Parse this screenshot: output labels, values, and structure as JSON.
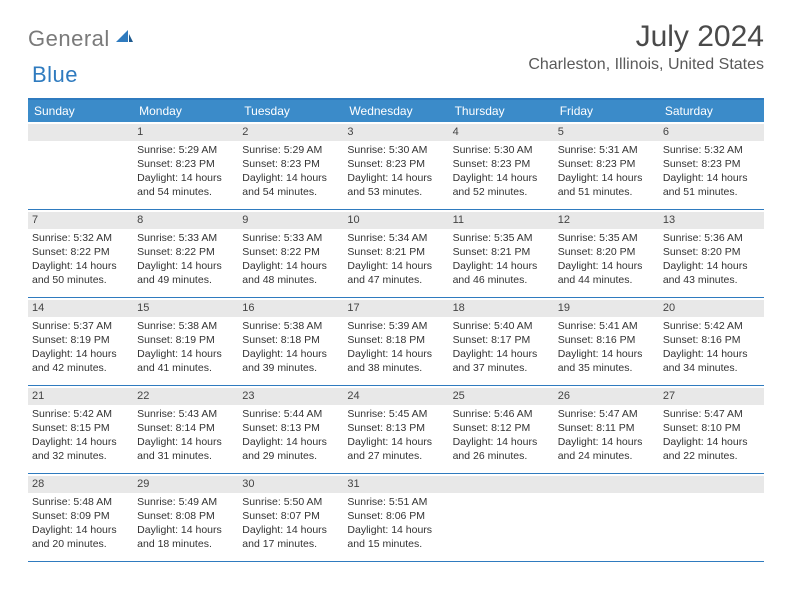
{
  "logo": {
    "textGray": "General",
    "textBlue": "Blue"
  },
  "title": "July 2024",
  "location": "Charleston, Illinois, United States",
  "dayNames": [
    "Sunday",
    "Monday",
    "Tuesday",
    "Wednesday",
    "Thursday",
    "Friday",
    "Saturday"
  ],
  "colors": {
    "headerBar": "#3b8bc9",
    "accent": "#2f7bbf",
    "dayNumBg": "#e8e8e8",
    "text": "#333333",
    "logoGray": "#7a7a7a"
  },
  "startOffset": 1,
  "days": [
    {
      "n": 1,
      "sr": "5:29 AM",
      "ss": "8:23 PM",
      "dh": 14,
      "dm": 54
    },
    {
      "n": 2,
      "sr": "5:29 AM",
      "ss": "8:23 PM",
      "dh": 14,
      "dm": 54
    },
    {
      "n": 3,
      "sr": "5:30 AM",
      "ss": "8:23 PM",
      "dh": 14,
      "dm": 53
    },
    {
      "n": 4,
      "sr": "5:30 AM",
      "ss": "8:23 PM",
      "dh": 14,
      "dm": 52
    },
    {
      "n": 5,
      "sr": "5:31 AM",
      "ss": "8:23 PM",
      "dh": 14,
      "dm": 51
    },
    {
      "n": 6,
      "sr": "5:32 AM",
      "ss": "8:23 PM",
      "dh": 14,
      "dm": 51
    },
    {
      "n": 7,
      "sr": "5:32 AM",
      "ss": "8:22 PM",
      "dh": 14,
      "dm": 50
    },
    {
      "n": 8,
      "sr": "5:33 AM",
      "ss": "8:22 PM",
      "dh": 14,
      "dm": 49
    },
    {
      "n": 9,
      "sr": "5:33 AM",
      "ss": "8:22 PM",
      "dh": 14,
      "dm": 48
    },
    {
      "n": 10,
      "sr": "5:34 AM",
      "ss": "8:21 PM",
      "dh": 14,
      "dm": 47
    },
    {
      "n": 11,
      "sr": "5:35 AM",
      "ss": "8:21 PM",
      "dh": 14,
      "dm": 46
    },
    {
      "n": 12,
      "sr": "5:35 AM",
      "ss": "8:20 PM",
      "dh": 14,
      "dm": 44
    },
    {
      "n": 13,
      "sr": "5:36 AM",
      "ss": "8:20 PM",
      "dh": 14,
      "dm": 43
    },
    {
      "n": 14,
      "sr": "5:37 AM",
      "ss": "8:19 PM",
      "dh": 14,
      "dm": 42
    },
    {
      "n": 15,
      "sr": "5:38 AM",
      "ss": "8:19 PM",
      "dh": 14,
      "dm": 41
    },
    {
      "n": 16,
      "sr": "5:38 AM",
      "ss": "8:18 PM",
      "dh": 14,
      "dm": 39
    },
    {
      "n": 17,
      "sr": "5:39 AM",
      "ss": "8:18 PM",
      "dh": 14,
      "dm": 38
    },
    {
      "n": 18,
      "sr": "5:40 AM",
      "ss": "8:17 PM",
      "dh": 14,
      "dm": 37
    },
    {
      "n": 19,
      "sr": "5:41 AM",
      "ss": "8:16 PM",
      "dh": 14,
      "dm": 35
    },
    {
      "n": 20,
      "sr": "5:42 AM",
      "ss": "8:16 PM",
      "dh": 14,
      "dm": 34
    },
    {
      "n": 21,
      "sr": "5:42 AM",
      "ss": "8:15 PM",
      "dh": 14,
      "dm": 32
    },
    {
      "n": 22,
      "sr": "5:43 AM",
      "ss": "8:14 PM",
      "dh": 14,
      "dm": 31
    },
    {
      "n": 23,
      "sr": "5:44 AM",
      "ss": "8:13 PM",
      "dh": 14,
      "dm": 29
    },
    {
      "n": 24,
      "sr": "5:45 AM",
      "ss": "8:13 PM",
      "dh": 14,
      "dm": 27
    },
    {
      "n": 25,
      "sr": "5:46 AM",
      "ss": "8:12 PM",
      "dh": 14,
      "dm": 26
    },
    {
      "n": 26,
      "sr": "5:47 AM",
      "ss": "8:11 PM",
      "dh": 14,
      "dm": 24
    },
    {
      "n": 27,
      "sr": "5:47 AM",
      "ss": "8:10 PM",
      "dh": 14,
      "dm": 22
    },
    {
      "n": 28,
      "sr": "5:48 AM",
      "ss": "8:09 PM",
      "dh": 14,
      "dm": 20
    },
    {
      "n": 29,
      "sr": "5:49 AM",
      "ss": "8:08 PM",
      "dh": 14,
      "dm": 18
    },
    {
      "n": 30,
      "sr": "5:50 AM",
      "ss": "8:07 PM",
      "dh": 14,
      "dm": 17
    },
    {
      "n": 31,
      "sr": "5:51 AM",
      "ss": "8:06 PM",
      "dh": 14,
      "dm": 15
    }
  ],
  "labels": {
    "sunrise": "Sunrise:",
    "sunset": "Sunset:",
    "daylightPrefix": "Daylight:",
    "hoursWord": "hours",
    "andWord": "and",
    "minutesWord": "minutes."
  }
}
